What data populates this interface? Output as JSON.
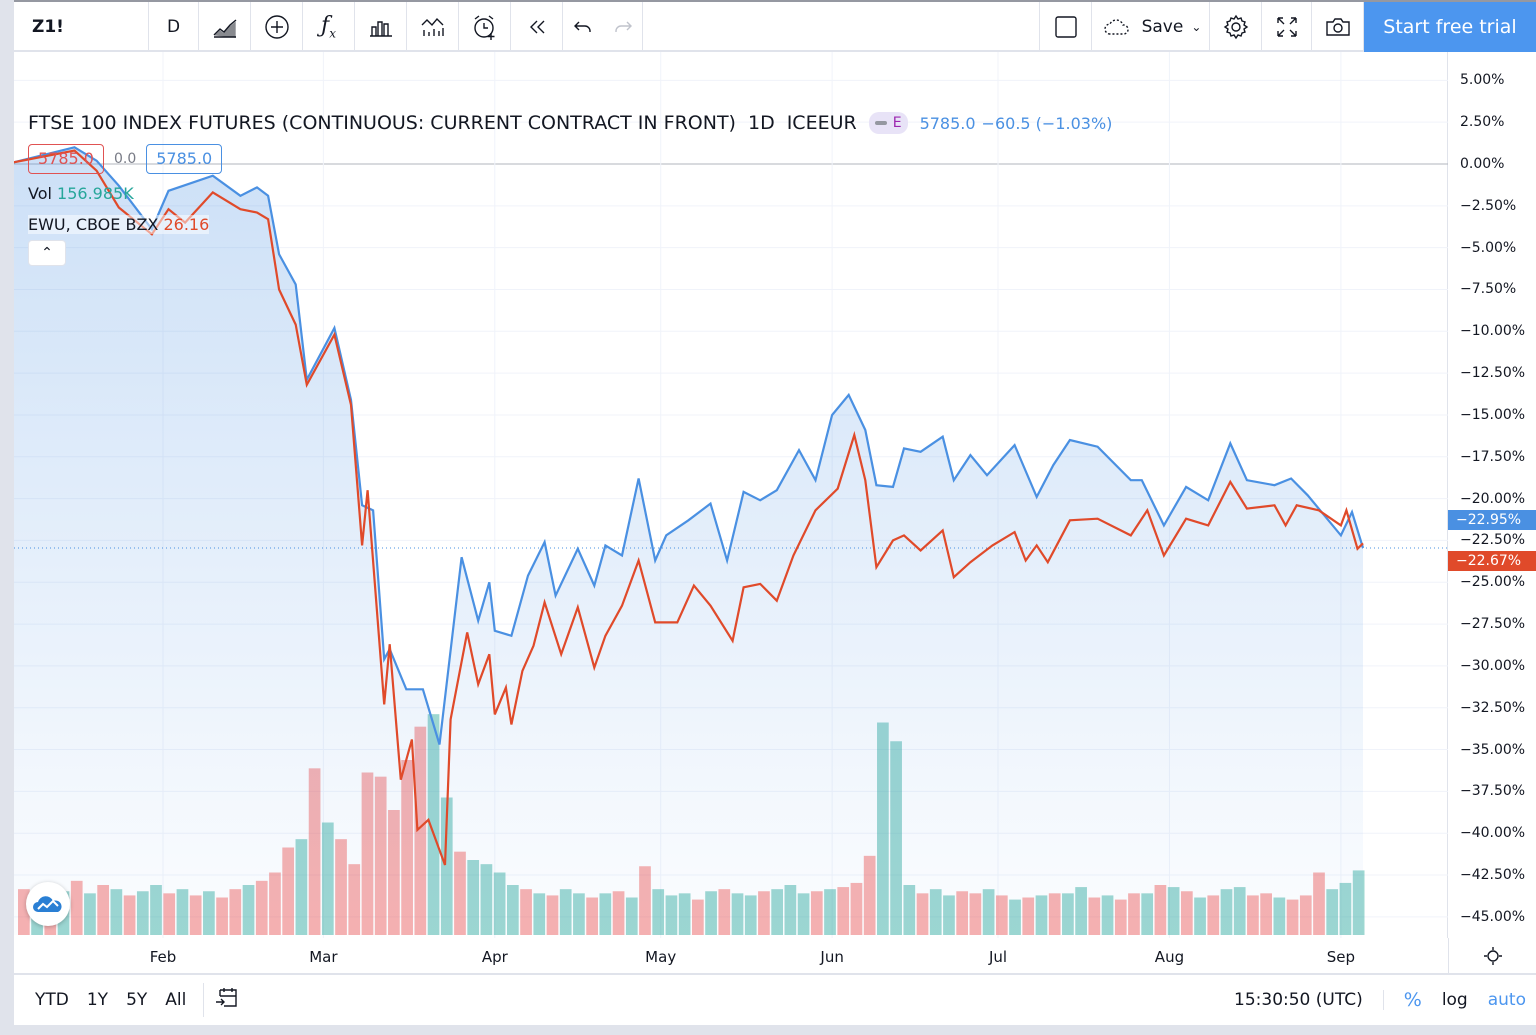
{
  "toolbar": {
    "symbol": "Z1!",
    "interval": "D",
    "save_label": "Save",
    "trial_label": "Start free trial"
  },
  "legend": {
    "title": "FTSE 100 INDEX FUTURES (CONTINUOUS: CURRENT CONTRACT IN FRONT)",
    "interval": "1D",
    "exchange": "ICEEUR",
    "badge": "E",
    "last": "5785.0",
    "change": "−60.5 (−1.03%)",
    "bid": "5785.0",
    "spread": "0.0",
    "ask": "5785.0",
    "vol_label": "Vol",
    "vol_value": "156.985K",
    "compare_symbol": "EWU, CBOE BZX",
    "compare_value": "26.16"
  },
  "bottom": {
    "ranges": [
      "YTD",
      "1Y",
      "5Y",
      "All"
    ],
    "time": "15:30:50 (UTC)",
    "percent": "%",
    "log": "log",
    "auto": "auto"
  },
  "colors": {
    "main": "#4a90e2",
    "compare": "#e04a2a",
    "vol_up": "#26a69a",
    "vol_down": "#ef5350",
    "accent": "#4c96ef"
  },
  "chart_data": {
    "type": "line",
    "ylim": [
      -47.5,
      7
    ],
    "y_ticks": [
      "5.00%",
      "2.50%",
      "0.00%",
      "−2.50%",
      "−5.00%",
      "−7.50%",
      "−10.00%",
      "−12.50%",
      "−15.00%",
      "−17.50%",
      "−20.00%",
      "−22.50%",
      "−25.00%",
      "−27.50%",
      "−30.00%",
      "−32.50%",
      "−35.00%",
      "−37.50%",
      "−40.00%",
      "−42.50%",
      "−45.00%"
    ],
    "x_ticks": [
      "Feb",
      "Mar",
      "Apr",
      "May",
      "Jun",
      "Jul",
      "Aug",
      "Sep"
    ],
    "last_labels": {
      "compare": "−22.67%",
      "main": "−22.95%"
    },
    "series": [
      {
        "name": "Z1!",
        "values": [
          [
            "01-05",
            0.1
          ],
          [
            "01-16",
            1.0
          ],
          [
            "01-20",
            0.2
          ],
          [
            "01-24",
            -1.3
          ],
          [
            "01-30",
            -3.9
          ],
          [
            "02-02",
            -1.6
          ],
          [
            "02-10",
            -0.7
          ],
          [
            "02-15",
            -1.9
          ],
          [
            "02-18",
            -1.4
          ],
          [
            "02-20",
            -1.9
          ],
          [
            "02-22",
            -5.4
          ],
          [
            "02-25",
            -7.2
          ],
          [
            "02-27",
            -12.9
          ],
          [
            "03-03",
            -9.8
          ],
          [
            "03-06",
            -14.1
          ],
          [
            "03-08",
            -20.4
          ],
          [
            "03-10",
            -20.7
          ],
          [
            "03-12",
            -29.6
          ],
          [
            "03-13",
            -29.0
          ],
          [
            "03-16",
            -31.4
          ],
          [
            "03-19",
            -31.4
          ],
          [
            "03-22",
            -34.7
          ],
          [
            "03-26",
            -23.5
          ],
          [
            "03-29",
            -27.3
          ],
          [
            "03-31",
            -25.0
          ],
          [
            "04-01",
            -27.9
          ],
          [
            "04-04",
            -28.2
          ],
          [
            "04-07",
            -24.6
          ],
          [
            "04-10",
            -22.6
          ],
          [
            "04-12",
            -25.8
          ],
          [
            "04-16",
            -23.0
          ],
          [
            "04-19",
            -25.2
          ],
          [
            "04-21",
            -22.8
          ],
          [
            "04-24",
            -23.4
          ],
          [
            "04-27",
            -18.8
          ],
          [
            "04-30",
            -23.7
          ],
          [
            "05-02",
            -22.2
          ],
          [
            "05-06",
            -21.3
          ],
          [
            "05-10",
            -20.3
          ],
          [
            "05-13",
            -23.7
          ],
          [
            "05-16",
            -19.6
          ],
          [
            "05-19",
            -20.1
          ],
          [
            "05-22",
            -19.5
          ],
          [
            "05-26",
            -17.1
          ],
          [
            "05-29",
            -18.9
          ],
          [
            "06-01",
            -15.0
          ],
          [
            "06-04",
            -13.8
          ],
          [
            "06-07",
            -15.9
          ],
          [
            "06-09",
            -19.2
          ],
          [
            "06-12",
            -19.3
          ],
          [
            "06-14",
            -17.0
          ],
          [
            "06-17",
            -17.2
          ],
          [
            "06-21",
            -16.3
          ],
          [
            "06-23",
            -18.9
          ],
          [
            "06-26",
            -17.4
          ],
          [
            "06-29",
            -18.6
          ],
          [
            "07-04",
            -16.8
          ],
          [
            "07-08",
            -19.9
          ],
          [
            "07-11",
            -18.0
          ],
          [
            "07-14",
            -16.5
          ],
          [
            "07-19",
            -16.9
          ],
          [
            "07-25",
            -18.9
          ],
          [
            "07-27",
            -18.9
          ],
          [
            "07-31",
            -21.6
          ],
          [
            "08-04",
            -19.3
          ],
          [
            "08-08",
            -20.1
          ],
          [
            "08-12",
            -16.7
          ],
          [
            "08-15",
            -18.9
          ],
          [
            "08-20",
            -19.2
          ],
          [
            "08-23",
            -18.8
          ],
          [
            "08-26",
            -19.8
          ],
          [
            "09-01",
            -22.2
          ],
          [
            "09-03",
            -20.8
          ],
          [
            "09-05",
            -22.95
          ]
        ]
      },
      {
        "name": "EWU, CBOE BZX",
        "values": [
          [
            "01-05",
            0.1
          ],
          [
            "01-16",
            0.8
          ],
          [
            "01-20",
            -0.4
          ],
          [
            "01-24",
            -2.6
          ],
          [
            "01-30",
            -4.2
          ],
          [
            "02-02",
            -2.7
          ],
          [
            "02-05",
            -3.5
          ],
          [
            "02-10",
            -1.7
          ],
          [
            "02-15",
            -2.7
          ],
          [
            "02-18",
            -2.9
          ],
          [
            "02-20",
            -3.3
          ],
          [
            "02-22",
            -7.5
          ],
          [
            "02-25",
            -9.6
          ],
          [
            "02-27",
            -13.2
          ],
          [
            "03-03",
            -10.2
          ],
          [
            "03-06",
            -14.4
          ],
          [
            "03-08",
            -22.8
          ],
          [
            "03-09",
            -19.5
          ],
          [
            "03-12",
            -32.3
          ],
          [
            "03-13",
            -28.7
          ],
          [
            "03-15",
            -36.8
          ],
          [
            "03-17",
            -34.4
          ],
          [
            "03-18",
            -39.8
          ],
          [
            "03-20",
            -39.2
          ],
          [
            "03-23",
            -41.9
          ],
          [
            "03-24",
            -33.2
          ],
          [
            "03-27",
            -28.0
          ],
          [
            "03-29",
            -31.1
          ],
          [
            "03-31",
            -29.3
          ],
          [
            "04-01",
            -32.9
          ],
          [
            "04-03",
            -31.3
          ],
          [
            "04-04",
            -33.5
          ],
          [
            "04-06",
            -30.3
          ],
          [
            "04-08",
            -28.8
          ],
          [
            "04-10",
            -26.2
          ],
          [
            "04-13",
            -29.3
          ],
          [
            "04-16",
            -26.5
          ],
          [
            "04-19",
            -30.1
          ],
          [
            "04-21",
            -28.2
          ],
          [
            "04-24",
            -26.4
          ],
          [
            "04-27",
            -23.7
          ],
          [
            "04-30",
            -27.4
          ],
          [
            "05-04",
            -27.4
          ],
          [
            "05-07",
            -25.2
          ],
          [
            "05-10",
            -26.4
          ],
          [
            "05-14",
            -28.5
          ],
          [
            "05-16",
            -25.3
          ],
          [
            "05-19",
            -25.1
          ],
          [
            "05-22",
            -26.1
          ],
          [
            "05-25",
            -23.4
          ],
          [
            "05-29",
            -20.7
          ],
          [
            "06-02",
            -19.4
          ],
          [
            "06-05",
            -16.2
          ],
          [
            "06-07",
            -18.9
          ],
          [
            "06-09",
            -24.1
          ],
          [
            "06-12",
            -22.5
          ],
          [
            "06-14",
            -22.2
          ],
          [
            "06-17",
            -23.1
          ],
          [
            "06-21",
            -21.9
          ],
          [
            "06-23",
            -24.7
          ],
          [
            "06-26",
            -23.8
          ],
          [
            "06-30",
            -22.8
          ],
          [
            "07-04",
            -22.0
          ],
          [
            "07-06",
            -23.7
          ],
          [
            "07-08",
            -22.8
          ],
          [
            "07-10",
            -23.8
          ],
          [
            "07-14",
            -21.3
          ],
          [
            "07-19",
            -21.2
          ],
          [
            "07-25",
            -22.2
          ],
          [
            "07-28",
            -20.7
          ],
          [
            "07-31",
            -23.4
          ],
          [
            "08-04",
            -21.2
          ],
          [
            "08-08",
            -21.6
          ],
          [
            "08-12",
            -19.0
          ],
          [
            "08-15",
            -20.6
          ],
          [
            "08-20",
            -20.4
          ],
          [
            "08-22",
            -21.6
          ],
          [
            "08-24",
            -20.4
          ],
          [
            "08-28",
            -20.7
          ],
          [
            "09-01",
            -21.6
          ],
          [
            "09-02",
            -20.7
          ],
          [
            "09-04",
            -23.0
          ],
          [
            "09-05",
            -22.67
          ]
        ]
      }
    ],
    "volume_k": [
      [
        110,
        "d"
      ],
      [
        95,
        "u"
      ],
      [
        120,
        "d"
      ],
      [
        105,
        "u"
      ],
      [
        130,
        "d"
      ],
      [
        100,
        "u"
      ],
      [
        120,
        "d"
      ],
      [
        110,
        "u"
      ],
      [
        95,
        "d"
      ],
      [
        105,
        "u"
      ],
      [
        120,
        "u"
      ],
      [
        100,
        "d"
      ],
      [
        110,
        "u"
      ],
      [
        95,
        "d"
      ],
      [
        105,
        "u"
      ],
      [
        90,
        "d"
      ],
      [
        110,
        "d"
      ],
      [
        120,
        "u"
      ],
      [
        130,
        "d"
      ],
      [
        150,
        "d"
      ],
      [
        210,
        "d"
      ],
      [
        230,
        "u"
      ],
      [
        400,
        "d"
      ],
      [
        270,
        "u"
      ],
      [
        230,
        "d"
      ],
      [
        170,
        "d"
      ],
      [
        390,
        "d"
      ],
      [
        380,
        "d"
      ],
      [
        300,
        "d"
      ],
      [
        420,
        "d"
      ],
      [
        500,
        "d"
      ],
      [
        530,
        "u"
      ],
      [
        330,
        "u"
      ],
      [
        200,
        "d"
      ],
      [
        180,
        "u"
      ],
      [
        170,
        "u"
      ],
      [
        150,
        "u"
      ],
      [
        120,
        "u"
      ],
      [
        110,
        "d"
      ],
      [
        100,
        "u"
      ],
      [
        95,
        "d"
      ],
      [
        110,
        "u"
      ],
      [
        100,
        "u"
      ],
      [
        90,
        "d"
      ],
      [
        100,
        "u"
      ],
      [
        105,
        "d"
      ],
      [
        90,
        "u"
      ],
      [
        165,
        "d"
      ],
      [
        110,
        "u"
      ],
      [
        95,
        "u"
      ],
      [
        100,
        "u"
      ],
      [
        85,
        "d"
      ],
      [
        105,
        "u"
      ],
      [
        110,
        "d"
      ],
      [
        100,
        "u"
      ],
      [
        95,
        "u"
      ],
      [
        105,
        "d"
      ],
      [
        110,
        "u"
      ],
      [
        120,
        "u"
      ],
      [
        100,
        "u"
      ],
      [
        105,
        "d"
      ],
      [
        110,
        "u"
      ],
      [
        115,
        "d"
      ],
      [
        125,
        "d"
      ],
      [
        190,
        "d"
      ],
      [
        510,
        "u"
      ],
      [
        465,
        "u"
      ],
      [
        120,
        "u"
      ],
      [
        100,
        "d"
      ],
      [
        110,
        "u"
      ],
      [
        95,
        "u"
      ],
      [
        105,
        "d"
      ],
      [
        100,
        "d"
      ],
      [
        110,
        "u"
      ],
      [
        95,
        "d"
      ],
      [
        85,
        "u"
      ],
      [
        90,
        "d"
      ],
      [
        95,
        "u"
      ],
      [
        100,
        "d"
      ],
      [
        100,
        "u"
      ],
      [
        115,
        "u"
      ],
      [
        90,
        "d"
      ],
      [
        95,
        "u"
      ],
      [
        85,
        "d"
      ],
      [
        100,
        "d"
      ],
      [
        100,
        "u"
      ],
      [
        120,
        "d"
      ],
      [
        115,
        "u"
      ],
      [
        105,
        "d"
      ],
      [
        90,
        "u"
      ],
      [
        95,
        "d"
      ],
      [
        110,
        "u"
      ],
      [
        115,
        "u"
      ],
      [
        95,
        "d"
      ],
      [
        100,
        "d"
      ],
      [
        90,
        "u"
      ],
      [
        85,
        "d"
      ],
      [
        95,
        "d"
      ],
      [
        150,
        "d"
      ],
      [
        110,
        "u"
      ],
      [
        125,
        "u"
      ],
      [
        155,
        "u"
      ]
    ]
  }
}
